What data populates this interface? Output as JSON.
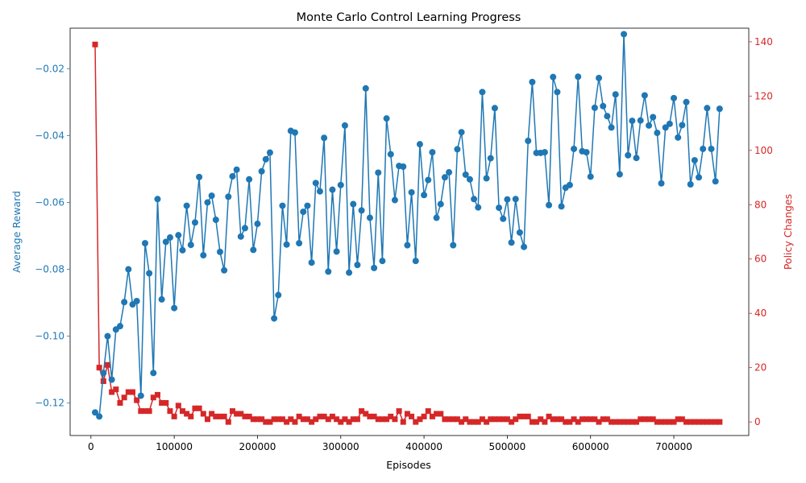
{
  "chart_data": {
    "type": "line",
    "title": "Monte Carlo Control Learning Progress",
    "xlabel": "Episodes",
    "ylabel_left": "Average Reward",
    "ylabel_right": "Policy Changes",
    "xlim": [
      -25000,
      790000
    ],
    "ylim_left": [
      -0.1297,
      -0.0079
    ],
    "ylim_right": [
      -5,
      145
    ],
    "x_ticks": [
      0,
      100000,
      200000,
      300000,
      400000,
      500000,
      600000,
      700000
    ],
    "x_tick_labels": [
      "0",
      "100000",
      "200000",
      "300000",
      "400000",
      "500000",
      "600000",
      "700000"
    ],
    "y_ticks_left": [
      -0.12,
      -0.1,
      -0.08,
      -0.06,
      -0.04,
      -0.02
    ],
    "y_tick_labels_left": [
      "−0.12",
      "−0.10",
      "−0.08",
      "−0.06",
      "−0.04",
      "−0.02"
    ],
    "y_ticks_right": [
      0,
      20,
      40,
      60,
      80,
      100,
      120,
      140
    ],
    "y_tick_labels_right": [
      "0",
      "20",
      "40",
      "60",
      "80",
      "100",
      "120",
      "140"
    ],
    "colors": {
      "left": "#1f77b4",
      "right": "#d62728"
    },
    "x": [
      5000,
      10000,
      15000,
      20000,
      25000,
      30000,
      35000,
      40000,
      45000,
      50000,
      55000,
      60000,
      65000,
      70000,
      75000,
      80000,
      85000,
      90000,
      95000,
      100000,
      105000,
      110000,
      115000,
      120000,
      125000,
      130000,
      135000,
      140000,
      145000,
      150000,
      155000,
      160000,
      165000,
      170000,
      175000,
      180000,
      185000,
      190000,
      195000,
      200000,
      205000,
      210000,
      215000,
      220000,
      225000,
      230000,
      235000,
      240000,
      245000,
      250000,
      255000,
      260000,
      265000,
      270000,
      275000,
      280000,
      285000,
      290000,
      295000,
      300000,
      305000,
      310000,
      315000,
      320000,
      325000,
      330000,
      335000,
      340000,
      345000,
      350000,
      355000,
      360000,
      365000,
      370000,
      375000,
      380000,
      385000,
      390000,
      395000,
      400000,
      405000,
      410000,
      415000,
      420000,
      425000,
      430000,
      435000,
      440000,
      445000,
      450000,
      455000,
      460000,
      465000,
      470000,
      475000,
      480000,
      485000,
      490000,
      495000,
      500000,
      505000,
      510000,
      515000,
      520000,
      525000,
      530000,
      535000,
      540000,
      545000,
      550000,
      555000,
      560000,
      565000,
      570000,
      575000,
      580000,
      585000,
      590000,
      595000,
      600000,
      605000,
      610000,
      615000,
      620000,
      625000,
      630000,
      635000,
      640000,
      645000,
      650000,
      655000,
      660000,
      665000,
      670000,
      675000,
      680000,
      685000,
      690000,
      695000,
      700000,
      705000,
      710000,
      715000,
      720000,
      725000,
      730000,
      735000,
      740000,
      745000,
      750000,
      755000
    ],
    "series": [
      {
        "name": "Average Reward",
        "axis": "left",
        "marker": "circle",
        "values": [
          -0.1228,
          -0.124,
          -0.111,
          -0.1,
          -0.113,
          -0.098,
          -0.097,
          -0.0898,
          -0.08,
          -0.0905,
          -0.0895,
          -0.1178,
          -0.0722,
          -0.0812,
          -0.111,
          -0.059,
          -0.089,
          -0.0718,
          -0.0705,
          -0.0916,
          -0.0698,
          -0.0743,
          -0.061,
          -0.0727,
          -0.066,
          -0.0524,
          -0.0758,
          -0.06,
          -0.058,
          -0.0652,
          -0.0748,
          -0.0803,
          -0.0583,
          -0.0522,
          -0.0502,
          -0.0702,
          -0.0677,
          -0.0531,
          -0.0742,
          -0.0664,
          -0.0507,
          -0.0471,
          -0.0451,
          -0.0947,
          -0.0877,
          -0.061,
          -0.0726,
          -0.0386,
          -0.0391,
          -0.0722,
          -0.0628,
          -0.061,
          -0.078,
          -0.0542,
          -0.0567,
          -0.0407,
          -0.0807,
          -0.0562,
          -0.0747,
          -0.0548,
          -0.037,
          -0.081,
          -0.0605,
          -0.0787,
          -0.0624,
          -0.0259,
          -0.0646,
          -0.0796,
          -0.0511,
          -0.0775,
          -0.0349,
          -0.0456,
          -0.0593,
          -0.0491,
          -0.0493,
          -0.0728,
          -0.057,
          -0.0775,
          -0.0426,
          -0.0578,
          -0.0533,
          -0.045,
          -0.0646,
          -0.0605,
          -0.0525,
          -0.051,
          -0.0728,
          -0.0441,
          -0.039,
          -0.0517,
          -0.0531,
          -0.059,
          -0.0615,
          -0.027,
          -0.0528,
          -0.0468,
          -0.0318,
          -0.0616,
          -0.0649,
          -0.0591,
          -0.072,
          -0.059,
          -0.069,
          -0.0733,
          -0.0416,
          -0.024,
          -0.0452,
          -0.0452,
          -0.045,
          -0.0608,
          -0.0225,
          -0.027,
          -0.0612,
          -0.0556,
          -0.0548,
          -0.044,
          -0.0224,
          -0.0447,
          -0.045,
          -0.0523,
          -0.0317,
          -0.0228,
          -0.0312,
          -0.0342,
          -0.0376,
          -0.0277,
          -0.0516,
          -0.0097,
          -0.0459,
          -0.0356,
          -0.0467,
          -0.0355,
          -0.028,
          -0.037,
          -0.0345,
          -0.0392,
          -0.0543,
          -0.0376,
          -0.0365,
          -0.0288,
          -0.0406,
          -0.0369,
          -0.03,
          -0.0546,
          -0.0474,
          -0.0525,
          -0.044,
          -0.0318,
          -0.044,
          -0.0537,
          -0.032
        ]
      },
      {
        "name": "Policy Changes",
        "axis": "right",
        "marker": "square",
        "values": [
          139,
          20,
          15,
          21,
          11,
          12,
          7,
          9,
          11,
          11,
          8,
          4,
          4,
          4,
          9,
          10,
          7,
          7,
          4,
          2,
          6,
          4,
          3,
          2,
          5,
          5,
          3,
          1,
          3,
          2,
          2,
          2,
          0,
          4,
          3,
          3,
          2,
          2,
          1,
          1,
          1,
          0,
          0,
          1,
          1,
          1,
          0,
          1,
          0,
          2,
          1,
          1,
          0,
          1,
          2,
          2,
          1,
          2,
          1,
          0,
          1,
          0,
          1,
          1,
          4,
          3,
          2,
          2,
          1,
          1,
          1,
          2,
          1,
          4,
          0,
          3,
          2,
          0,
          1,
          2,
          4,
          2,
          3,
          3,
          1,
          1,
          1,
          1,
          0,
          1,
          0,
          0,
          0,
          1,
          0,
          1,
          1,
          1,
          1,
          1,
          0,
          1,
          2,
          2,
          2,
          0,
          0,
          1,
          0,
          2,
          1,
          1,
          1,
          0,
          0,
          1,
          0,
          1,
          1,
          1,
          1,
          0,
          1,
          1,
          0,
          0,
          0,
          0,
          0,
          0,
          0,
          1,
          1,
          1,
          1,
          0,
          0,
          0,
          0,
          0,
          1,
          1,
          0,
          0,
          0,
          0,
          0,
          0,
          0,
          0,
          0
        ]
      }
    ],
    "grid": false,
    "legend": "none"
  }
}
